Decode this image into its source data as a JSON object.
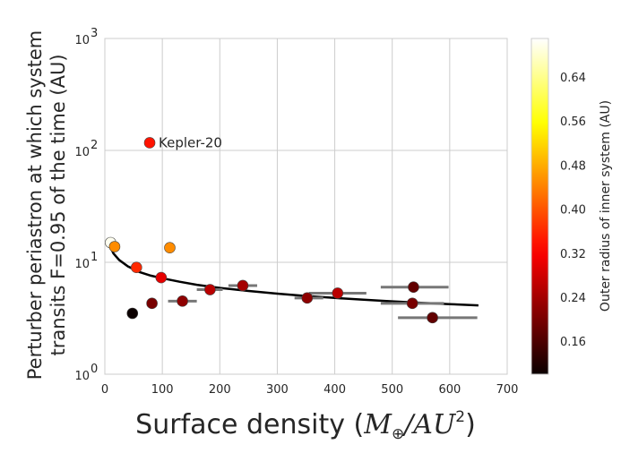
{
  "chart_data": {
    "type": "scatter",
    "title": "",
    "xlabel_text": "Surface density (",
    "xlabel_math_var": "M",
    "xlabel_math_sub": "⊕",
    "xlabel_math_mid": "/AU",
    "xlabel_math_sup": "2",
    "xlabel_tail": ")",
    "ylabel_line1": "Perturber periastron at which system",
    "ylabel_line2": "transits F=0.95 of the time (AU)",
    "xlim": [
      0,
      700
    ],
    "ylim_log10": [
      0,
      3
    ],
    "x_ticks": [
      0,
      100,
      200,
      300,
      400,
      500,
      600,
      700
    ],
    "x_tick_labels": [
      "0",
      "100",
      "200",
      "300",
      "400",
      "500",
      "600",
      "700"
    ],
    "y_ticks_log10": [
      0,
      1,
      2,
      3
    ],
    "y_tick_base": "10",
    "y_tick_exponents": [
      "0",
      "1",
      "2",
      "3"
    ],
    "grid": true,
    "colorbar": {
      "label": "Outer radius of inner system (AU)",
      "range": [
        0.1,
        0.71
      ],
      "ticks": [
        0.16,
        0.24,
        0.32,
        0.4,
        0.48,
        0.56,
        0.64
      ],
      "tick_labels": [
        "0.16",
        "0.24",
        "0.32",
        "0.40",
        "0.48",
        "0.56",
        "0.64"
      ],
      "colormap": "hot"
    },
    "points": [
      {
        "x": 10,
        "y": 15.0,
        "r_outer": 0.7
      },
      {
        "x": 17,
        "y": 13.8,
        "r_outer": 0.45
      },
      {
        "x": 55,
        "y": 9.0,
        "r_outer": 0.36
      },
      {
        "x": 48,
        "y": 3.5,
        "r_outer": 0.1
      },
      {
        "x": 78,
        "y": 117,
        "r_outer": 0.34
      },
      {
        "x": 82,
        "y": 4.3,
        "r_outer": 0.2
      },
      {
        "x": 98,
        "y": 7.3,
        "r_outer": 0.3
      },
      {
        "x": 113,
        "y": 13.5,
        "r_outer": 0.45
      },
      {
        "x": 135,
        "y": 4.5,
        "r_outer": 0.22
      },
      {
        "x": 183,
        "y": 5.7,
        "r_outer": 0.26
      },
      {
        "x": 240,
        "y": 6.2,
        "r_outer": 0.24
      },
      {
        "x": 352,
        "y": 4.8,
        "r_outer": 0.22
      },
      {
        "x": 405,
        "y": 5.3,
        "r_outer": 0.26
      },
      {
        "x": 537,
        "y": 6.0,
        "r_outer": 0.18
      },
      {
        "x": 535,
        "y": 4.3,
        "r_outer": 0.2
      },
      {
        "x": 570,
        "y": 3.2,
        "r_outer": 0.18
      }
    ],
    "error_bars": [
      {
        "x_low": 110,
        "x_high": 160,
        "y": 4.5
      },
      {
        "x_low": 160,
        "x_high": 205,
        "y": 5.7
      },
      {
        "x_low": 215,
        "x_high": 265,
        "y": 6.2
      },
      {
        "x_low": 330,
        "x_high": 380,
        "y": 4.8
      },
      {
        "x_low": 355,
        "x_high": 455,
        "y": 5.3
      },
      {
        "x_low": 480,
        "x_high": 598,
        "y": 6.0
      },
      {
        "x_low": 480,
        "x_high": 590,
        "y": 4.3
      },
      {
        "x_low": 510,
        "x_high": 648,
        "y": 3.2
      }
    ],
    "fit_curve": {
      "x": [
        8,
        15,
        25,
        40,
        60,
        80,
        100,
        130,
        160,
        200,
        250,
        300,
        350,
        400,
        450,
        500,
        550,
        600,
        650
      ],
      "y": [
        14.3,
        12.0,
        10.5,
        9.2,
        8.2,
        7.6,
        7.2,
        6.7,
        6.3,
        5.9,
        5.55,
        5.25,
        5.0,
        4.8,
        4.63,
        4.48,
        4.35,
        4.23,
        4.12
      ]
    },
    "annotations": [
      {
        "text": "Kepler-20",
        "x": 78,
        "y": 117
      }
    ]
  }
}
